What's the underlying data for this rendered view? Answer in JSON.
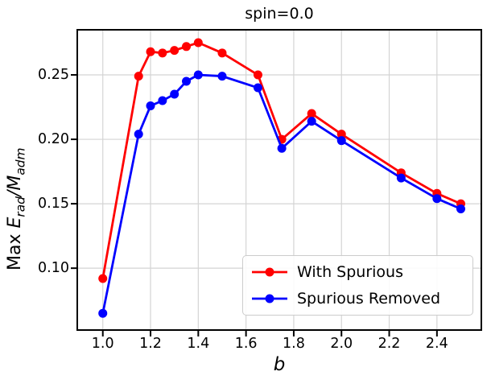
{
  "figure": {
    "title": "spin=0.0",
    "xlabel": "b",
    "ylabel": {
      "prefix": "Max",
      "e": "E",
      "e_sub": "rad",
      "slash": "/",
      "m": "M",
      "m_sub": "adm"
    }
  },
  "chart_data": {
    "type": "line",
    "title": "spin=0.0",
    "xlabel": "b",
    "ylabel": "Max E_rad/M_adm",
    "x": [
      1.0,
      1.15,
      1.2,
      1.25,
      1.3,
      1.35,
      1.4,
      1.5,
      1.65,
      1.75,
      1.875,
      2.0,
      2.25,
      2.4,
      2.5
    ],
    "series": [
      {
        "name": "With Spurious",
        "color": "#ff0000",
        "values": [
          0.092,
          0.249,
          0.268,
          0.267,
          0.269,
          0.272,
          0.275,
          0.267,
          0.25,
          0.2,
          0.22,
          0.204,
          0.174,
          0.158,
          0.15
        ]
      },
      {
        "name": "Spurious Removed",
        "color": "#0000ff",
        "values": [
          0.065,
          0.204,
          0.226,
          0.23,
          0.235,
          0.245,
          0.25,
          0.249,
          0.24,
          0.193,
          0.214,
          0.199,
          0.17,
          0.154,
          0.146
        ]
      }
    ],
    "xlim": [
      0.893,
      2.586
    ],
    "ylim": [
      0.052,
      0.285
    ],
    "xticks": [
      1.0,
      1.2,
      1.4,
      1.6,
      1.8,
      2.0,
      2.2,
      2.4
    ],
    "yticks": [
      0.1,
      0.15,
      0.2,
      0.25
    ],
    "grid": true,
    "legend_position": "lower right"
  },
  "legend": {
    "entries": [
      {
        "label": "With Spurious",
        "color": "#ff0000"
      },
      {
        "label": "Spurious Removed",
        "color": "#0000ff"
      }
    ]
  },
  "colors": {
    "grid": "#d4d4d4",
    "spine": "#000000",
    "tick": "#000000",
    "legend_border": "#cccccc"
  }
}
